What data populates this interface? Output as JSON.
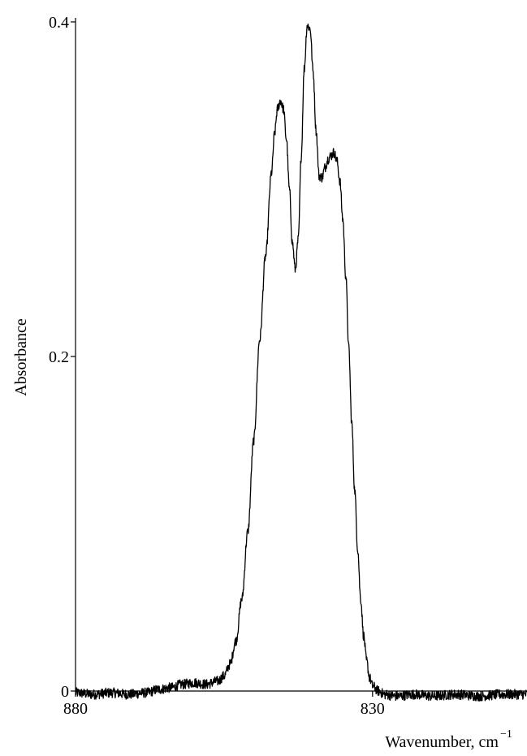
{
  "chart_data": {
    "type": "line",
    "title": "",
    "xlabel": "Wavenumber, cm",
    "xlabel_superscript": "−1",
    "ylabel": "Absorbance",
    "xlim": [
      880,
      804
    ],
    "ylim": [
      0,
      0.4
    ],
    "x_reversed": true,
    "grid": false,
    "legend": "none",
    "x_ticks": [
      {
        "value": 880,
        "label": "880"
      },
      {
        "value": 830,
        "label": "830"
      }
    ],
    "y_ticks": [
      {
        "value": 0,
        "label": "0"
      },
      {
        "value": 0.2,
        "label": "0.2"
      },
      {
        "value": 0.4,
        "label": "0.4"
      }
    ],
    "series": [
      {
        "color": "#000000",
        "x": [
          880,
          877,
          874,
          871,
          868,
          866,
          864,
          862,
          860,
          858,
          856,
          855,
          854,
          853,
          852,
          851,
          850,
          849,
          848,
          847,
          846.5,
          846,
          845.5,
          845,
          844.5,
          844,
          843.5,
          843,
          842.5,
          842,
          841.5,
          841,
          840.5,
          840,
          839.5,
          839,
          838.5,
          838,
          837.5,
          837,
          836.5,
          836,
          835.5,
          835,
          834.5,
          834,
          833.5,
          833,
          832.5,
          832,
          831.5,
          831,
          830.5,
          830,
          829,
          828,
          826,
          823,
          820,
          816,
          812,
          808,
          804
        ],
        "y": [
          -0.001,
          -0.002,
          -0.001,
          -0.002,
          -0.001,
          0.001,
          0.002,
          0.004,
          0.005,
          0.004,
          0.006,
          0.009,
          0.016,
          0.03,
          0.055,
          0.095,
          0.15,
          0.21,
          0.26,
          0.31,
          0.333,
          0.348,
          0.353,
          0.348,
          0.33,
          0.3,
          0.268,
          0.252,
          0.27,
          0.32,
          0.372,
          0.398,
          0.396,
          0.37,
          0.335,
          0.308,
          0.307,
          0.313,
          0.318,
          0.32,
          0.322,
          0.317,
          0.305,
          0.282,
          0.248,
          0.205,
          0.16,
          0.12,
          0.085,
          0.055,
          0.033,
          0.018,
          0.008,
          0.003,
          0.0,
          -0.002,
          -0.003,
          -0.002,
          -0.003,
          -0.002,
          -0.003,
          -0.002,
          -0.002
        ]
      }
    ]
  }
}
